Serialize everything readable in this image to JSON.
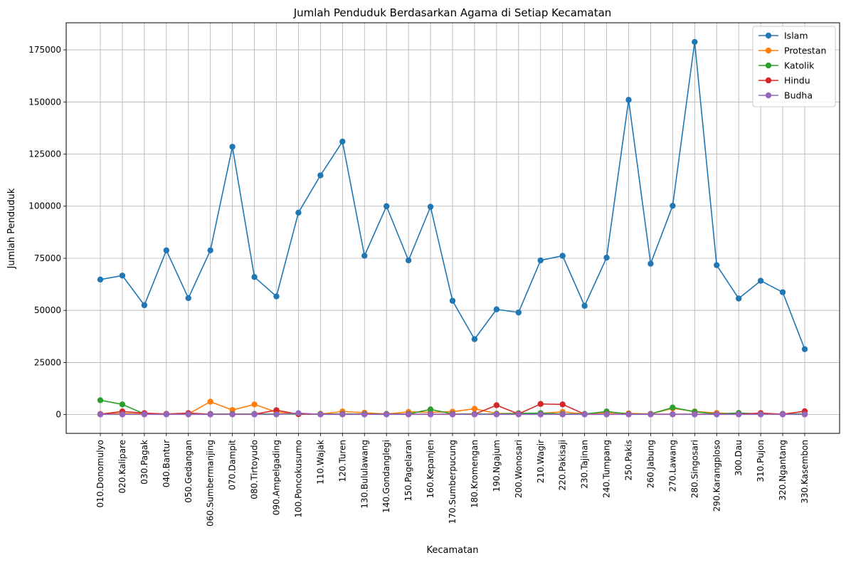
{
  "chart_data": {
    "type": "line",
    "title": "Jumlah Penduduk Berdasarkan Agama di Setiap Kecamatan",
    "xlabel": "Kecamatan",
    "ylabel": "Jumlah Penduduk",
    "ylim": [
      -9000,
      188000
    ],
    "yticks": [
      0,
      25000,
      50000,
      75000,
      100000,
      125000,
      150000,
      175000
    ],
    "ytick_labels": [
      "0",
      "25000",
      "50000",
      "75000",
      "100000",
      "125000",
      "150000",
      "175000"
    ],
    "grid": true,
    "legend_position": "top-right",
    "categories": [
      "010.Donomulyo",
      "020.Kalipare",
      "030.Pagak",
      "040.Bantur",
      "050.Gedangan",
      "060.Sumbermanjing",
      "070.Dampit",
      "080.Tirtoyudo",
      "090.Ampelgading",
      "100.Poncokusumo",
      "110.Wajak",
      "120.Turen",
      "130.Bululawang",
      "140.Gondanglegi",
      "150.Pagelaran",
      "160.Kepanjen",
      "170.Sumberpucung",
      "180.Kromengan",
      "190.Ngajum",
      "200.Wonosari",
      "210.Wagir",
      "220.Pakisaji",
      "230.Tajinan",
      "240.Tumpang",
      "250.Pakis",
      "260.Jabung",
      "270.Lawang",
      "280.Singosari",
      "290.Karangploso",
      "300.Dau",
      "310.Pujon",
      "320.Ngantang",
      "330.Kasembon"
    ],
    "series": [
      {
        "name": "Islam",
        "color": "#1f77b4",
        "values": [
          64800,
          66700,
          52500,
          78800,
          55900,
          78800,
          128500,
          66000,
          56700,
          96900,
          114800,
          131000,
          76200,
          100000,
          74000,
          99700,
          54600,
          36200,
          50500,
          49000,
          74000,
          76200,
          52200,
          75300,
          151000,
          72400,
          100200,
          178800,
          71700,
          55700,
          64200,
          58700,
          31400
        ]
      },
      {
        "name": "Protestan",
        "color": "#ff7f0e",
        "values": [
          300,
          600,
          300,
          300,
          300,
          6200,
          2200,
          4900,
          1200,
          300,
          300,
          1500,
          900,
          300,
          1300,
          1100,
          1400,
          2800,
          500,
          600,
          600,
          1300,
          300,
          1000,
          600,
          300,
          3000,
          1500,
          800,
          400,
          300,
          300,
          300
        ]
      },
      {
        "name": "Katolik",
        "color": "#2ca02c",
        "values": [
          6900,
          4900,
          300,
          300,
          300,
          300,
          300,
          300,
          300,
          300,
          300,
          300,
          300,
          300,
          300,
          2500,
          300,
          300,
          300,
          600,
          700,
          300,
          300,
          1500,
          300,
          300,
          3400,
          1400,
          300,
          800,
          300,
          300,
          300
        ]
      },
      {
        "name": "Hindu",
        "color": "#d62728",
        "values": [
          200,
          1500,
          700,
          300,
          700,
          200,
          200,
          200,
          2100,
          200,
          200,
          200,
          200,
          200,
          200,
          200,
          200,
          200,
          4500,
          300,
          5100,
          4900,
          200,
          200,
          200,
          200,
          200,
          200,
          200,
          200,
          700,
          200,
          1600
        ]
      },
      {
        "name": "Budha",
        "color": "#9467bd",
        "values": [
          100,
          100,
          100,
          100,
          100,
          100,
          100,
          100,
          100,
          700,
          100,
          100,
          100,
          100,
          100,
          100,
          100,
          100,
          100,
          100,
          100,
          100,
          100,
          100,
          100,
          100,
          100,
          100,
          100,
          100,
          100,
          100,
          100
        ]
      }
    ]
  }
}
